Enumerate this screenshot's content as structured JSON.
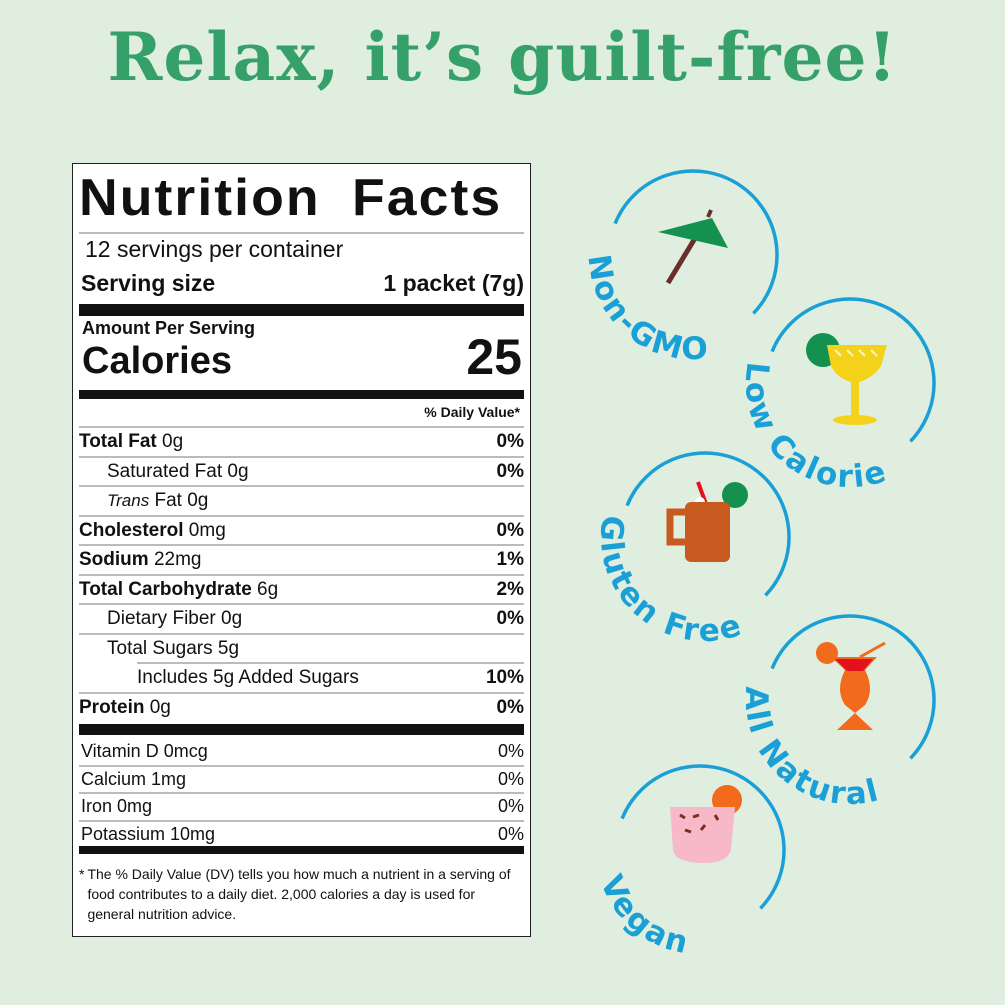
{
  "headline": "Relax, it’s guilt-free!",
  "label": {
    "title": "Nutrition Facts",
    "servings": "12 servings per container",
    "serving_size_label": "Serving size",
    "serving_size_value": "1 packet (7g)",
    "amount_per_serving": "Amount Per Serving",
    "calories_label": "Calories",
    "calories_value": "25",
    "dv_header": "% Daily Value*",
    "nutrients": [
      {
        "bold": "Total Fat",
        "rest": " 0g",
        "dv": "0%"
      },
      {
        "bold": "",
        "rest": "Saturated Fat 0g",
        "dv": "0%"
      },
      {
        "italic": "Trans",
        "rest": " Fat 0g",
        "dv": ""
      },
      {
        "bold": "Cholesterol",
        "rest": " 0mg",
        "dv": "0%"
      },
      {
        "bold": "Sodium",
        "rest": " 22mg",
        "dv": "1%"
      },
      {
        "bold": "Total Carbohydrate",
        "rest": " 6g",
        "dv": "2%"
      },
      {
        "bold": "",
        "rest": "Dietary Fiber 0g",
        "dv": "0%"
      },
      {
        "bold": "",
        "rest": "Total Sugars 5g",
        "dv": ""
      },
      {
        "bold": "",
        "rest": "Includes 5g Added Sugars",
        "dv": "10%"
      },
      {
        "bold": "Protein",
        "rest": " 0g",
        "dv": "0%"
      }
    ],
    "vitamins": [
      {
        "name": "Vitamin D 0mcg",
        "dv": "0%"
      },
      {
        "name": "Calcium 1mg",
        "dv": "0%"
      },
      {
        "name": "Iron 0mg",
        "dv": "0%"
      },
      {
        "name": "Potassium 10mg",
        "dv": "0%"
      }
    ],
    "footnote_mark": "*",
    "footnote": "The % Daily Value (DV) tells you how much a nutrient in a serving of food contributes to a daily diet. 2,000 calories a day is used for general nutrition advice."
  },
  "badges": [
    {
      "text": "Non-GMO",
      "icon": "cocktail-umbrella-icon"
    },
    {
      "text": "Low Calorie",
      "icon": "margarita-icon"
    },
    {
      "text": "Gluten Free",
      "icon": "copper-mug-icon"
    },
    {
      "text": "All Natural",
      "icon": "hurricane-glass-icon"
    },
    {
      "text": "Vegan",
      "icon": "pink-tumbler-icon"
    }
  ],
  "colors": {
    "background": "#dfeedf",
    "headline": "#36a06a",
    "badge": "#1a9fd6"
  }
}
